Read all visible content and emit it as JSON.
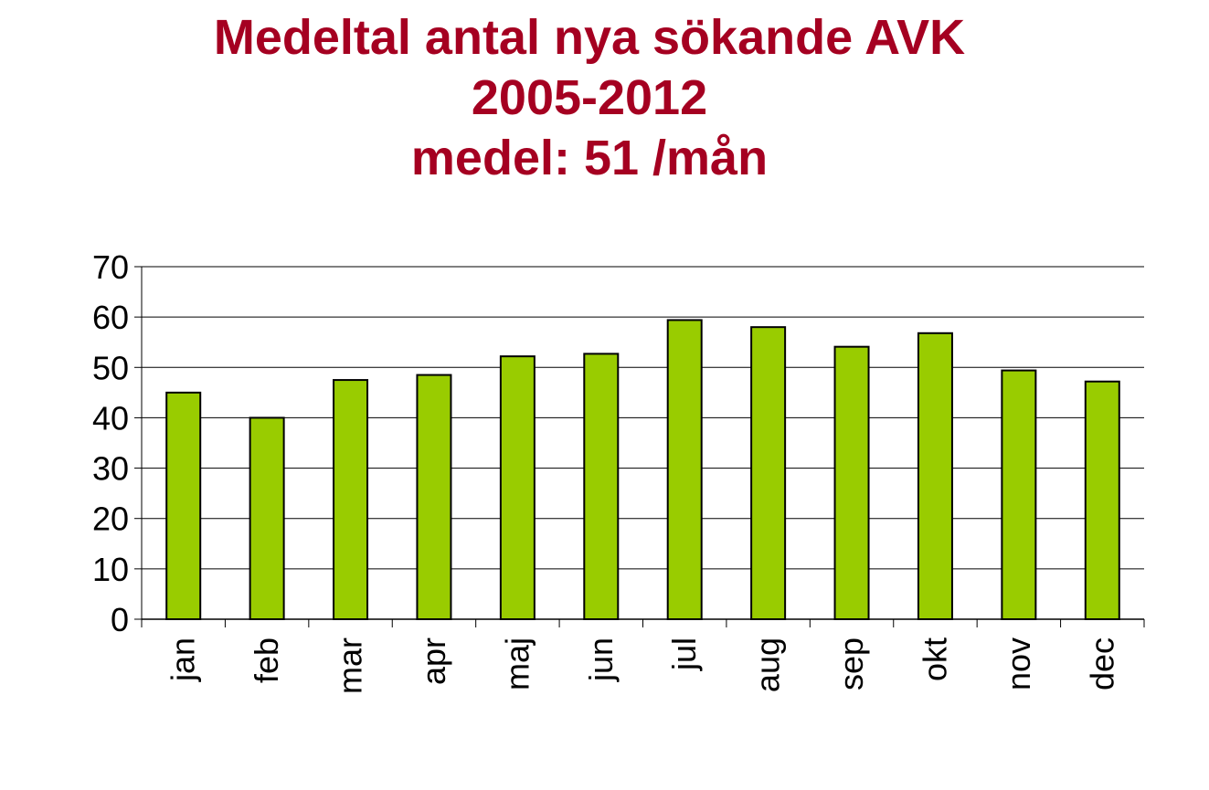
{
  "chart_data": {
    "type": "bar",
    "title_lines": [
      "Medeltal antal nya sökande AVK",
      "2005-2012",
      "medel: 51 /mån"
    ],
    "categories": [
      "jan",
      "feb",
      "mar",
      "apr",
      "maj",
      "jun",
      "jul",
      "aug",
      "sep",
      "okt",
      "nov",
      "dec"
    ],
    "values": [
      45,
      40,
      47.5,
      48.5,
      52.2,
      52.7,
      59.4,
      58,
      54.1,
      56.8,
      49.4,
      47.2
    ],
    "ylim": [
      0,
      70
    ],
    "yticks": [
      "0",
      "10",
      "20",
      "30",
      "40",
      "50",
      "60",
      "70"
    ],
    "grid": true,
    "legend": "none",
    "bar_color": "#99cc00",
    "title_color": "#a50021"
  }
}
